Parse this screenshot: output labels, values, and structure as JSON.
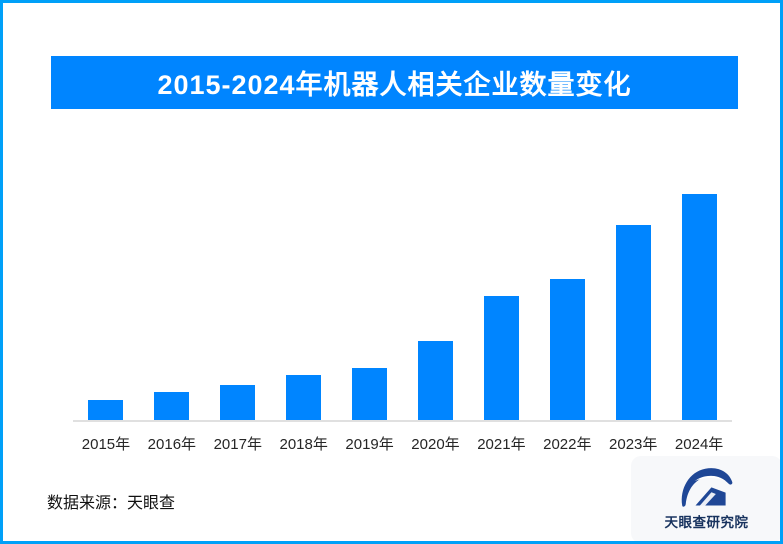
{
  "header": {
    "title": "2015-2024年机器人相关企业数量变化",
    "banner_color": "#0085FF",
    "title_text_color": "#FFFFFF"
  },
  "chart_data": {
    "type": "bar",
    "title": "2015-2024年机器人相关企业数量变化",
    "categories": [
      "2015年",
      "2016年",
      "2017年",
      "2018年",
      "2019年",
      "2020年",
      "2021年",
      "2022年",
      "2023年",
      "2024年"
    ],
    "values": [
      8.7,
      12.4,
      15.5,
      19.9,
      23.2,
      35.0,
      54.9,
      62.6,
      86.3,
      100
    ],
    "value_note": "relative bar heights as % of tallest (2024) bar; chart shows no numeric value labels or y-axis",
    "xlabel": "",
    "ylabel": "",
    "ylim": [
      0,
      100
    ],
    "grid": false,
    "legend": false,
    "value_labels_shown": false,
    "bar_color": "#0085FF",
    "axis_line_color": "#E0E0E0",
    "tick_label_color": "#262626"
  },
  "footer": {
    "source": "数据来源：天眼查",
    "brand": "天眼查研究院"
  },
  "colors": {
    "outer_border": "#00A0F8",
    "background": "#FFFFFF",
    "brand_logo_navy": "#1F4796",
    "brand_text_navy": "#17325E",
    "logo_card_background": "#F7F8FA"
  }
}
